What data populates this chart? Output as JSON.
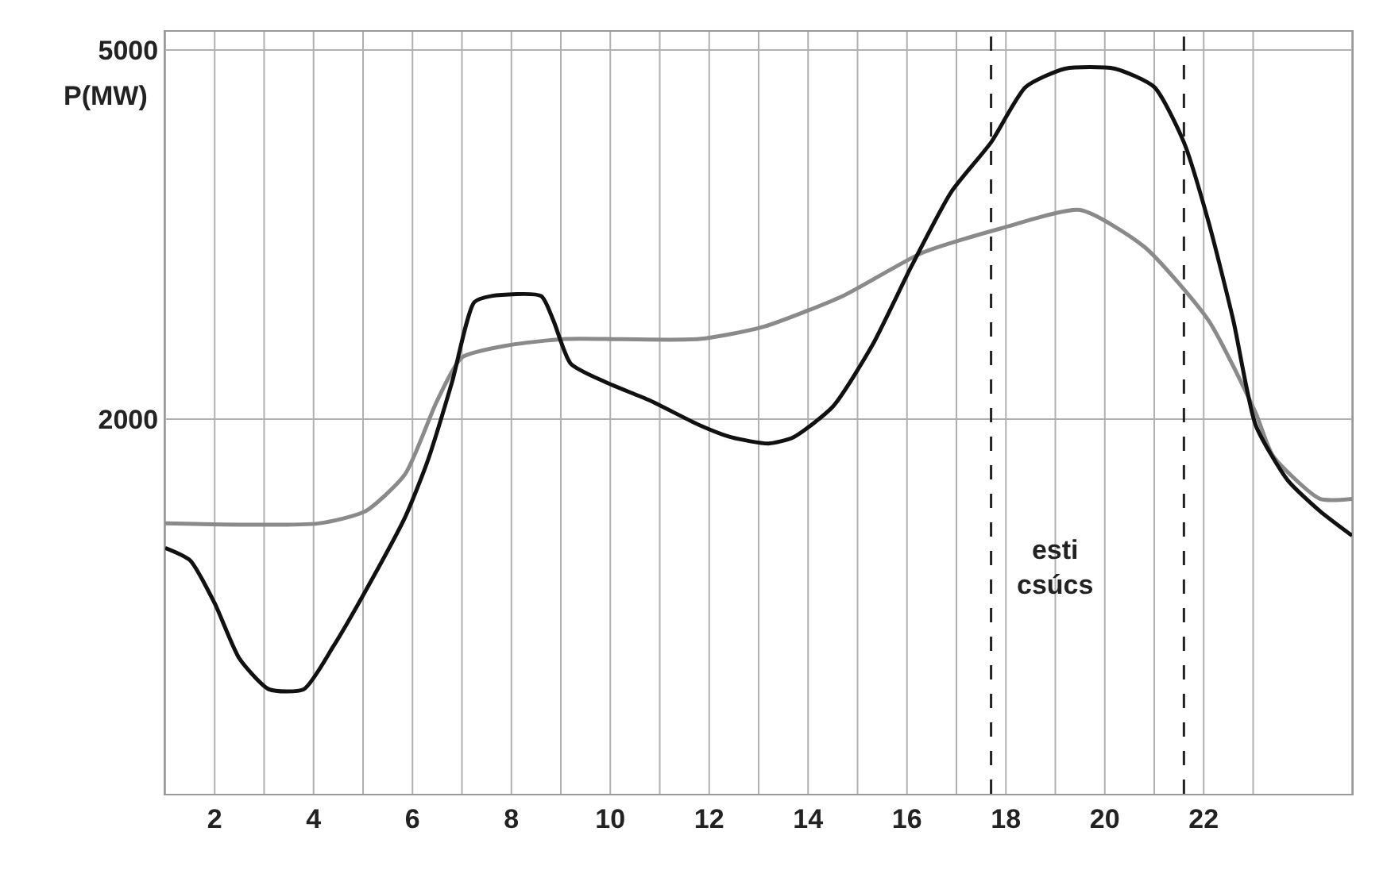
{
  "chart_data": {
    "type": "line",
    "ylabel": "P(MW)",
    "xlim": [
      1,
      25
    ],
    "ylim": [
      -1050,
      5150
    ],
    "xticks": [
      {
        "value": 1,
        "label": null
      },
      {
        "value": 2,
        "label": "2"
      },
      {
        "value": 3,
        "label": null
      },
      {
        "value": 4,
        "label": "4"
      },
      {
        "value": 5,
        "label": null
      },
      {
        "value": 6,
        "label": "6"
      },
      {
        "value": 7,
        "label": null
      },
      {
        "value": 8,
        "label": "8"
      },
      {
        "value": 9,
        "label": null
      },
      {
        "value": 10,
        "label": "10"
      },
      {
        "value": 11,
        "label": null
      },
      {
        "value": 12,
        "label": "12"
      },
      {
        "value": 13,
        "label": null
      },
      {
        "value": 14,
        "label": "14"
      },
      {
        "value": 15,
        "label": null
      },
      {
        "value": 16,
        "label": "16"
      },
      {
        "value": 17,
        "label": null
      },
      {
        "value": 18,
        "label": "18"
      },
      {
        "value": 19,
        "label": null
      },
      {
        "value": 20,
        "label": "20"
      },
      {
        "value": 21,
        "label": null
      },
      {
        "value": 22,
        "label": "22"
      },
      {
        "value": 23,
        "label": null
      },
      {
        "value": 25,
        "label": null
      }
    ],
    "yticks": [
      2000,
      5000
    ],
    "grid": true,
    "marker": "none",
    "line_style": "solid",
    "series": [
      {
        "color": "#8a8a8a",
        "x": [
          1,
          4.1,
          5.05,
          5.85,
          6.5,
          7,
          7.95,
          9.1,
          11.8,
          13.1,
          14.7,
          16.3,
          17.9,
          19.5,
          20.8,
          22.1,
          23.05,
          23.4,
          24.35,
          25
        ],
        "values": [
          1150,
          1150,
          1250,
          1550,
          2150,
          2500,
          2600,
          2650,
          2650,
          2750,
          3000,
          3350,
          3550,
          3700,
          3400,
          2800,
          2050,
          1700,
          1350,
          1350
        ]
      },
      {
        "color": "#111111",
        "x": [
          1,
          1.5,
          2,
          2.5,
          3.1,
          3.8,
          4.4,
          5.05,
          5.85,
          6.3,
          6.8,
          7.25,
          7.6,
          8.6,
          8.85,
          9.2,
          9.9,
          10.8,
          11.8,
          12.45,
          13.2,
          13.7,
          14.5,
          15.3,
          16.1,
          16.9,
          17.7,
          18.4,
          19.2,
          20.2,
          21,
          21.6,
          22.1,
          22.6,
          23.05,
          23.7,
          24.35,
          25
        ],
        "values": [
          950,
          850,
          500,
          50,
          -200,
          -200,
          150,
          600,
          1200,
          1650,
          2300,
          2950,
          3000,
          3000,
          2800,
          2450,
          2300,
          2150,
          1950,
          1850,
          1800,
          1850,
          2100,
          2600,
          3250,
          3850,
          4250,
          4700,
          4850,
          4850,
          4700,
          4250,
          3600,
          2800,
          1950,
          1500,
          1250,
          1050
        ]
      }
    ],
    "ref_lines": [
      {
        "axis": "x",
        "value": 17.7,
        "color": "#222222",
        "line_style": "dashed"
      },
      {
        "axis": "x",
        "value": 21.6,
        "color": "#222222",
        "line_style": "dashed"
      }
    ],
    "annotations": [
      "esti\ncsúcs"
    ]
  }
}
